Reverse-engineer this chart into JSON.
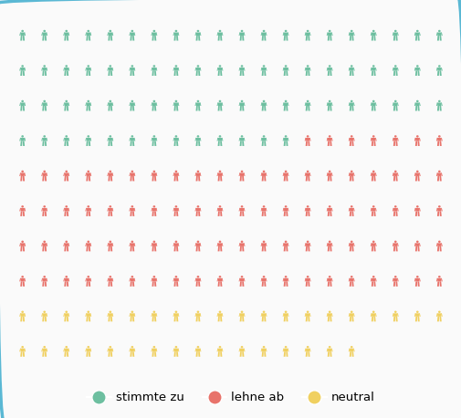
{
  "stimme_zu": 731,
  "lehne_ab": 867,
  "neutral": 360,
  "scale": 10,
  "cols": 20,
  "color_green": "#6dbfa0",
  "color_red": "#e8736b",
  "color_yellow": "#f0d060",
  "bg_color": "#fafafa",
  "border_color": "#5ab8d4",
  "legend_labels": [
    "stimmte zu",
    "lehne ab",
    "neutral"
  ],
  "figsize": [
    5.06,
    4.58
  ],
  "dpi": 100
}
